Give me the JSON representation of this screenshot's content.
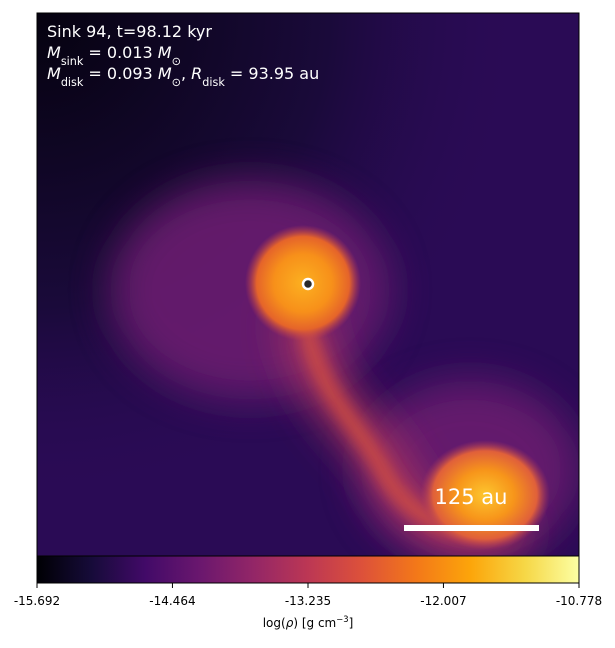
{
  "chart_data": {
    "type": "density-map",
    "annotation_lines": [
      [
        {
          "text": "Sink 94, t=98.12 kyr",
          "style": "normal"
        }
      ],
      [
        {
          "text": "M",
          "style": "italic"
        },
        {
          "text": "sink",
          "style": "sub"
        },
        {
          "text": " = 0.013 ",
          "style": "normal"
        },
        {
          "text": "M",
          "style": "italic"
        },
        {
          "text": "⊙",
          "style": "sub"
        }
      ],
      [
        {
          "text": "M",
          "style": "italic"
        },
        {
          "text": "disk",
          "style": "sub"
        },
        {
          "text": " = 0.093 ",
          "style": "normal"
        },
        {
          "text": "M",
          "style": "italic"
        },
        {
          "text": "⊙",
          "style": "sub"
        },
        {
          "text": ", ",
          "style": "normal"
        },
        {
          "text": "R",
          "style": "italic"
        },
        {
          "text": "disk",
          "style": "sub"
        },
        {
          "text": " = 93.95 au",
          "style": "normal"
        }
      ]
    ],
    "scale_bar_label": "125 au",
    "colorbar": {
      "label": [
        {
          "text": "log(",
          "style": "normal"
        },
        {
          "text": "ρ",
          "style": "italic"
        },
        {
          "text": ") [g cm",
          "style": "normal"
        },
        {
          "text": "−3",
          "style": "sup"
        },
        {
          "text": "]",
          "style": "normal"
        }
      ],
      "lim": [
        -15.692,
        -10.778
      ],
      "ticks": [
        -15.692,
        -14.464,
        -13.235,
        -12.007,
        -10.778
      ]
    }
  }
}
